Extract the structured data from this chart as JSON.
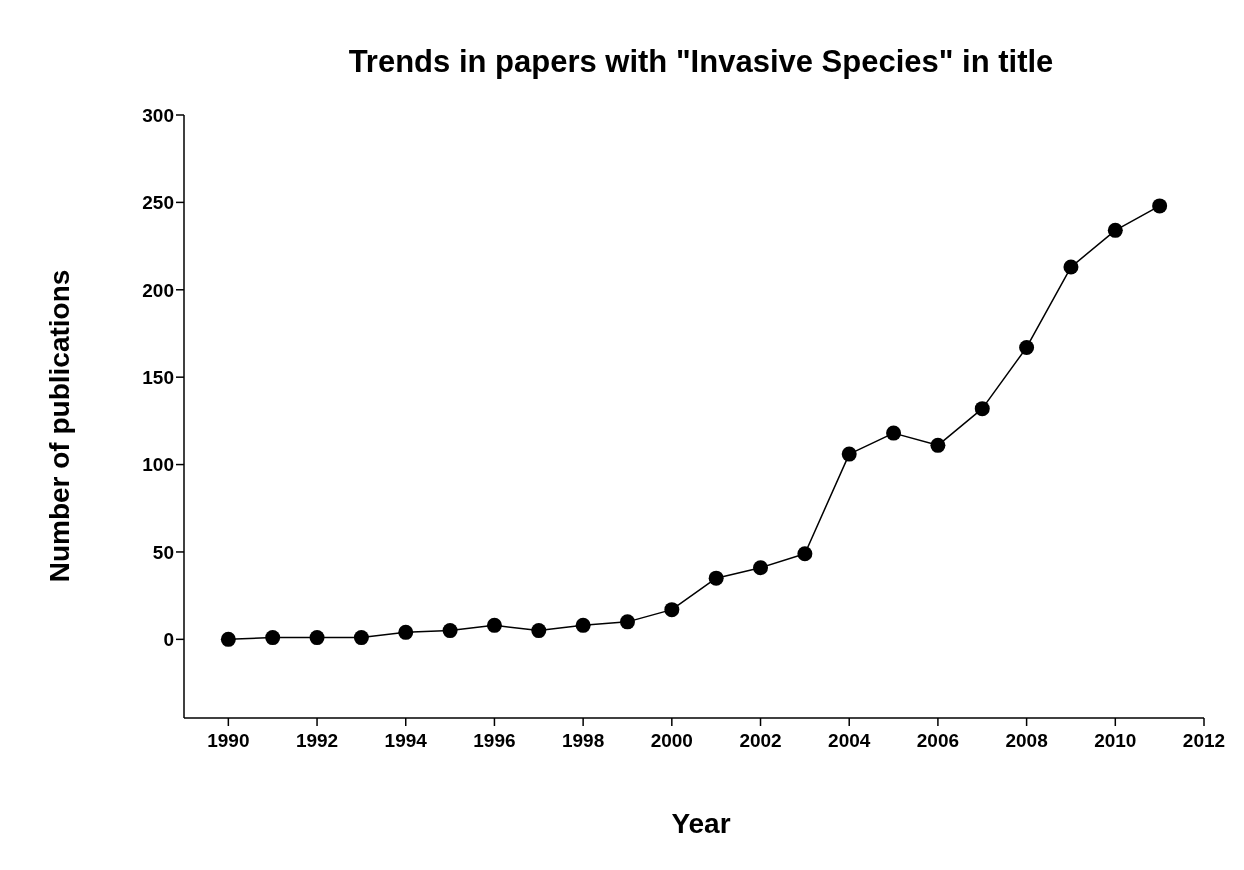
{
  "chart_data": {
    "type": "line",
    "title": "Trends in papers with \"Invasive Species\" in title",
    "xlabel": "Year",
    "ylabel": "Number of publications",
    "x": [
      1990,
      1991,
      1992,
      1993,
      1994,
      1995,
      1996,
      1997,
      1998,
      1999,
      2000,
      2001,
      2002,
      2003,
      2004,
      2005,
      2006,
      2007,
      2008,
      2009,
      2010,
      2011
    ],
    "series": [
      {
        "color": "#000000",
        "values": [
          0,
          1,
          1,
          1,
          4,
          5,
          8,
          5,
          8,
          10,
          17,
          35,
          41,
          49,
          106,
          118,
          111,
          132,
          167,
          213,
          234,
          248
        ]
      }
    ],
    "xlim": [
      1989,
      2012
    ],
    "xticks": [
      1990,
      1992,
      1994,
      1996,
      1998,
      2000,
      2002,
      2004,
      2006,
      2008,
      2010,
      2012
    ],
    "ylim": [
      -45,
      300
    ],
    "yticks": [
      0,
      50,
      100,
      150,
      200,
      250,
      300
    ],
    "grid": false,
    "legend": false,
    "marker": "circle",
    "line_style": "solid"
  }
}
